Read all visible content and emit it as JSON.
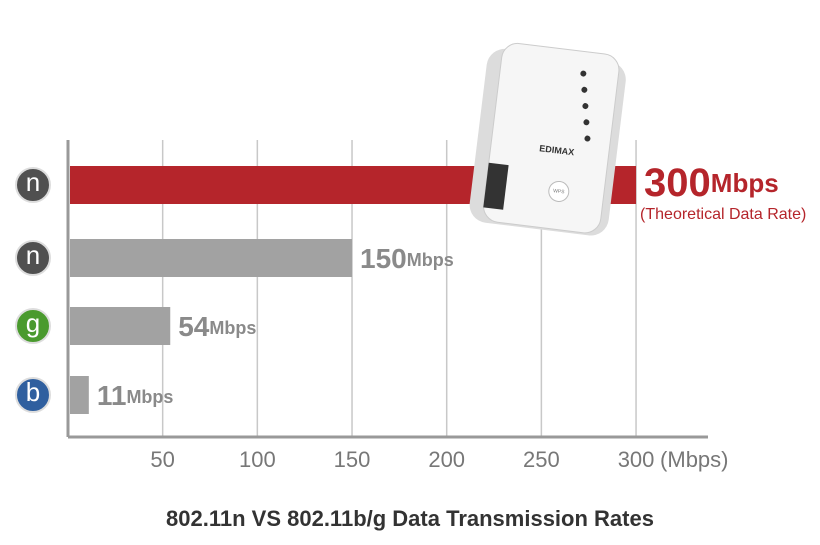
{
  "chart_data": {
    "type": "bar",
    "orientation": "horizontal",
    "title": "802.11n VS 802.11b/g Data Transmission Rates",
    "categories": [
      "n",
      "n",
      "g",
      "b"
    ],
    "category_colors": [
      "#505050",
      "#505050",
      "#4a9a2e",
      "#2f5f9f"
    ],
    "values": [
      300,
      150,
      54,
      11
    ],
    "colors": [
      "#b5252b",
      "#a2a2a2",
      "#a2a2a2",
      "#a2a2a2"
    ],
    "value_unit": "Mbps",
    "annotation": "(Theoretical Data Rate)",
    "x_unit": "(Mbps)",
    "xlim": [
      0,
      338
    ],
    "xticks": [
      50,
      100,
      150,
      200,
      250,
      300
    ],
    "grid": true,
    "device_brand": "EDIMAX",
    "device_button": "WPS"
  }
}
